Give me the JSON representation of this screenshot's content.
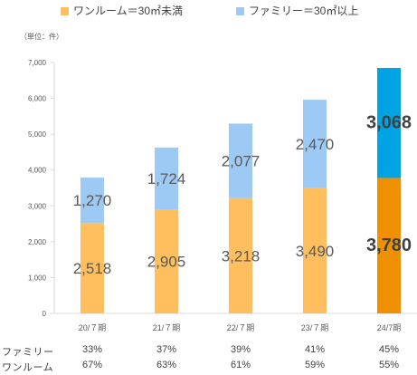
{
  "legend": {
    "oneroom": "ワンルーム＝30㎡未満",
    "family": "ファミリー＝30㎡以上"
  },
  "unit_label": "（単位：件）",
  "colors": {
    "oneroom": "#ffbf5f",
    "family": "#9dc9f5",
    "oneroom_highlight": "#ef9000",
    "family_highlight": "#00a3e3"
  },
  "chart_data": {
    "type": "bar",
    "stacked": true,
    "categories": [
      "20/７期",
      "21/７期",
      "22/７期",
      "23/７期",
      "24/7期"
    ],
    "series": [
      {
        "name": "ワンルーム＝30㎡未満",
        "values": [
          2518,
          2905,
          3218,
          3490,
          3780
        ]
      },
      {
        "name": "ファミリー＝30㎡以上",
        "values": [
          1270,
          1724,
          2077,
          2470,
          3068
        ]
      }
    ],
    "value_labels": {
      "oneroom": [
        "2,518",
        "2,905",
        "3,218",
        "3,490",
        "3,780"
      ],
      "family": [
        "1,270",
        "1,724",
        "2,077",
        "2,470",
        "3,068"
      ]
    },
    "highlight_index": 4,
    "ylim": [
      0,
      7000
    ],
    "yticks": [
      0,
      1000,
      2000,
      3000,
      4000,
      5000,
      6000,
      7000
    ],
    "ytick_labels": [
      "0",
      "1,000",
      "2,000",
      "3,000",
      "4,000",
      "5,000",
      "6,000",
      "7,000"
    ],
    "grid": false,
    "legend_position": "top"
  },
  "ratio_table": {
    "family_label": "ファミリー",
    "oneroom_label": "ワンルーム",
    "family": [
      "33%",
      "37%",
      "39%",
      "41%",
      "45%"
    ],
    "oneroom": [
      "67%",
      "63%",
      "61%",
      "59%",
      "55%"
    ]
  }
}
